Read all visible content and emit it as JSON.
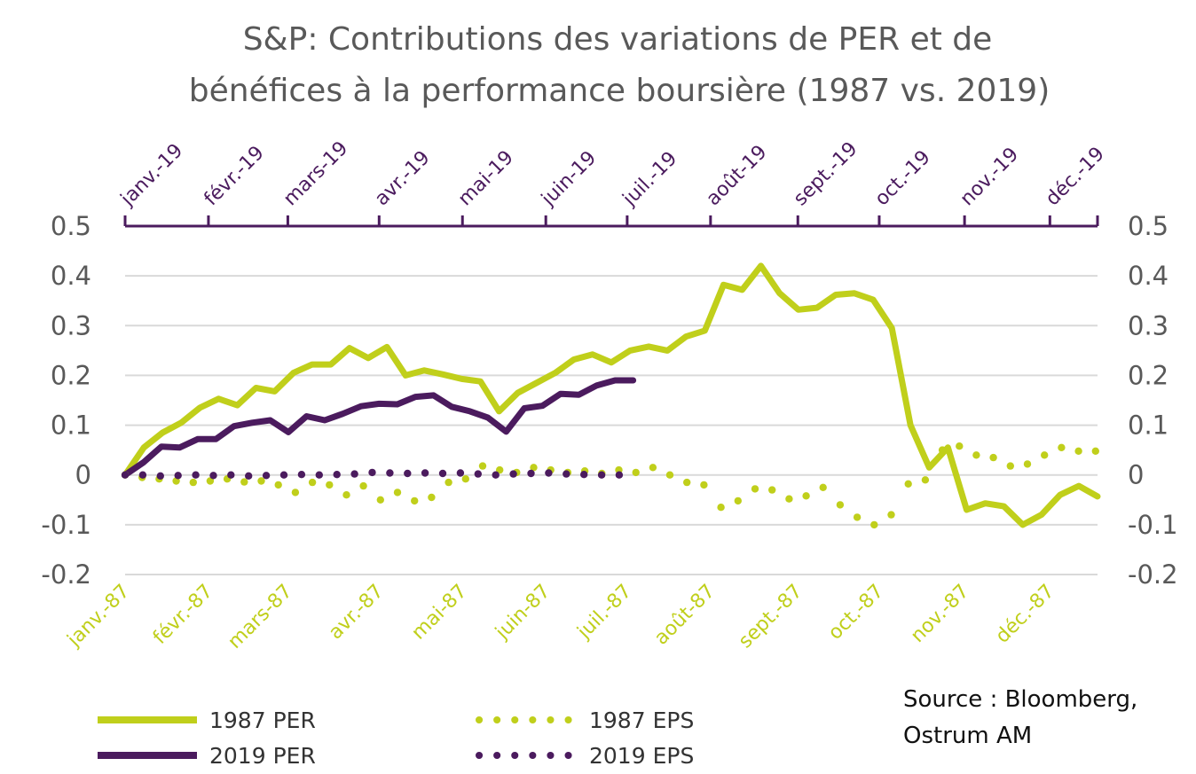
{
  "chart_data": {
    "type": "line",
    "title_lines": [
      "S&P: Contributions des variations de PER et de",
      "bénéfices à la performance boursière (1987 vs. 2019)"
    ],
    "source_lines": [
      "Source : Bloomberg,",
      "Ostrum AM"
    ],
    "ylim": [
      -0.2,
      0.5
    ],
    "y_ticks": [
      "0.5",
      "0.4",
      "0.3",
      "0.2",
      "0.1",
      "0",
      "-0.1",
      "-0.2"
    ],
    "y_tick_values": [
      0.5,
      0.4,
      0.3,
      0.2,
      0.1,
      0,
      -0.1,
      -0.2
    ],
    "grid": true,
    "x_top_labels": [
      "janv.-19",
      "févr.-19",
      "mars-19",
      "avr.-19",
      "mai-19",
      "juin-19",
      "juil.-19",
      "août-19",
      "sept.-19",
      "oct.-19",
      "nov.-19",
      "déc.-19"
    ],
    "x_bottom_labels": [
      "janv.-87",
      "févr.-87",
      "mars-87",
      "avr.-87",
      "mai-87",
      "juin-87",
      "juil.-87",
      "août-87",
      "sept.-87",
      "oct.-87",
      "nov.-87",
      "déc.-87"
    ],
    "x_top_label_weeks": [
      0,
      4.2,
      8.2,
      12.8,
      17,
      21.2,
      25.3,
      29.5,
      33.9,
      38,
      42.3,
      46.6
    ],
    "x_bottom_label_weeks": [
      0,
      4.2,
      8.2,
      12.8,
      17,
      21.2,
      25.3,
      29.5,
      33.9,
      38,
      42.3,
      46.6
    ],
    "x_range_weeks": [
      0,
      49
    ],
    "colors": {
      "y1987": "#c0cf1b",
      "y2019": "#4b1b5e",
      "grid": "#d9d9d9",
      "title": "#595959"
    },
    "legend_placement": "bottom-left",
    "series": [
      {
        "name": "1987 PER",
        "color": "#c0cf1b",
        "style": "solid",
        "values": [
          0,
          0.055,
          0.085,
          0.105,
          0.135,
          0.153,
          0.14,
          0.175,
          0.168,
          0.205,
          0.222,
          0.222,
          0.255,
          0.235,
          0.257,
          0.2,
          0.21,
          0.202,
          0.193,
          0.188,
          0.128,
          0.165,
          0.185,
          0.205,
          0.232,
          0.242,
          0.226,
          0.25,
          0.258,
          0.25,
          0.278,
          0.29,
          0.382,
          0.372,
          0.42,
          0.365,
          0.332,
          0.336,
          0.362,
          0.365,
          0.352,
          0.295,
          0.1,
          0.015,
          0.055,
          -0.07,
          -0.057,
          -0.063,
          -0.1,
          -0.08,
          -0.04,
          -0.022,
          -0.043
        ]
      },
      {
        "name": "2019 PER",
        "color": "#4b1b5e",
        "style": "solid",
        "values": [
          0,
          0.025,
          0.057,
          0.055,
          0.072,
          0.072,
          0.098,
          0.105,
          0.11,
          0.086,
          0.118,
          0.11,
          0.123,
          0.138,
          0.143,
          0.142,
          0.157,
          0.16,
          0.137,
          0.128,
          0.115,
          0.087,
          0.134,
          0.139,
          0.163,
          0.161,
          0.18,
          0.19,
          0.19
        ]
      },
      {
        "name": "1987 EPS",
        "color": "#c0cf1b",
        "style": "dotted",
        "values": [
          0,
          -0.005,
          -0.008,
          -0.012,
          -0.015,
          -0.012,
          -0.008,
          -0.014,
          -0.012,
          -0.02,
          -0.035,
          -0.015,
          -0.02,
          -0.04,
          -0.022,
          -0.05,
          -0.035,
          -0.052,
          -0.045,
          -0.015,
          -0.008,
          0.018,
          0.01,
          0.005,
          0.015,
          0.01,
          0.005,
          0.008,
          0.003,
          0.01,
          0.005,
          0.015,
          0,
          -0.015,
          -0.02,
          -0.065,
          -0.052,
          -0.028,
          -0.03,
          -0.048,
          -0.042,
          -0.025,
          -0.06,
          -0.085,
          -0.1,
          -0.08,
          -0.018,
          -0.01,
          0.05,
          0.058,
          0.04,
          0.035,
          0.018,
          0.022,
          0.04,
          0.055,
          0.048,
          0.048
        ]
      },
      {
        "name": "2019 EPS",
        "color": "#4b1b5e",
        "style": "dotted",
        "values": [
          0,
          0,
          -0.002,
          -0.001,
          0,
          -0.001,
          0,
          -0.002,
          -0.001,
          0,
          0.001,
          0,
          0.001,
          0.002,
          0.005,
          0.004,
          0.003,
          0.004,
          0.003,
          0.004,
          0.002,
          0,
          0.002,
          0.003,
          0.004,
          0.002,
          0.001,
          0,
          0
        ]
      }
    ],
    "eps1987_weeks": [
      0,
      1,
      2,
      3,
      4,
      5,
      6,
      7,
      8,
      9,
      10,
      11,
      12,
      13,
      14,
      15,
      16,
      17,
      18,
      19,
      20,
      21,
      22,
      23,
      24,
      25,
      26,
      27,
      28,
      29,
      30,
      31,
      32,
      33,
      34,
      35,
      36,
      37,
      38,
      39,
      40,
      41,
      42,
      43,
      44,
      45,
      46,
      47,
      48,
      49,
      50,
      51,
      52,
      53,
      54,
      55,
      56,
      57
    ]
  }
}
